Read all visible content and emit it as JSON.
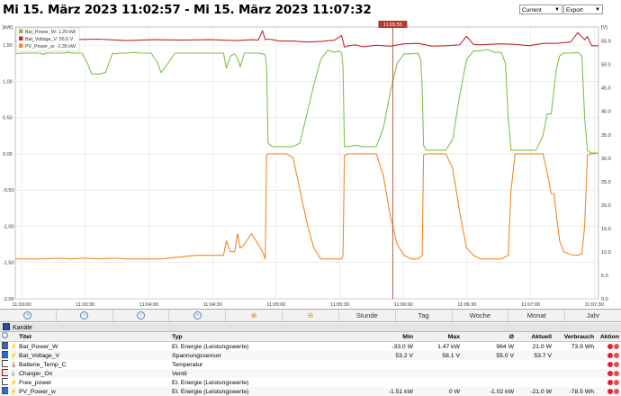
{
  "header": {
    "title": "Mi 15. März 2023 11:02:57 - Mi 15. März 2023 11:07:32",
    "range_select": "Current",
    "export_select": "Export"
  },
  "chart_data": {
    "type": "line",
    "cursor_label": "11:05:55",
    "left_axis": {
      "unit_label": "[kW]",
      "ticks": [
        "1.50",
        "1.00",
        "0.50",
        "0.00",
        "-0.50",
        "-1.00",
        "-1.50",
        "-2.00"
      ],
      "ylim": [
        -2.0,
        1.75
      ]
    },
    "right_axis": {
      "unit_label": "[V]",
      "ticks": [
        "55.0",
        "50.0",
        "45.0",
        "40.0",
        "35.0",
        "30.0",
        "25.0",
        "20.0",
        "15.0",
        "10.0",
        "5.0",
        "0.0"
      ],
      "ylim": [
        0,
        58
      ]
    },
    "x_ticks": [
      "11:03:00",
      "11:03:30",
      "11:04:00",
      "11:04:30",
      "11:05:00",
      "11:05:30",
      "11:06:00",
      "11:06:30",
      "11:07:00",
      "11:07:30"
    ],
    "legend": [
      {
        "label": "Bat_Power_W: 1.29 kW",
        "color": "#7ec24a"
      },
      {
        "label": "Bat_Voltage_V: 55.5 V",
        "color": "#c0282d"
      },
      {
        "label": "PV_Power_w: -1.35 kW",
        "color": "#f08a24"
      }
    ],
    "series": [
      {
        "name": "Bat_Power_W",
        "axis": "left",
        "color": "#7ec24a",
        "x": [
          0,
          5,
          10,
          15,
          18,
          20,
          22,
          25,
          30,
          35,
          38,
          42,
          48,
          52,
          55,
          60,
          65,
          70,
          72,
          75,
          80,
          85,
          90,
          95,
          98,
          100,
          102,
          105,
          110,
          115,
          120,
          125,
          130,
          135,
          140,
          145,
          150,
          152,
          155,
          158,
          160,
          162,
          165,
          170,
          173,
          175,
          178,
          180,
          181,
          182,
          185,
          190,
          195,
          200,
          205,
          210,
          215,
          220,
          225,
          230,
          233,
          235,
          236,
          237,
          240,
          245,
          250,
          255,
          260,
          265,
          270,
          275,
          280,
          285,
          290,
          292,
          293,
          294,
          296,
          300,
          305,
          310,
          315,
          320,
          325,
          330,
          335,
          340,
          345,
          350,
          353,
          355,
          357,
          360,
          365,
          370,
          375,
          380,
          383,
          386,
          388,
          390,
          392,
          395,
          400,
          405,
          408,
          410,
          412,
          414,
          415,
          420
        ],
        "y": [
          1.38,
          1.39,
          1.39,
          1.39,
          1.39,
          1.37,
          1.39,
          1.39,
          1.39,
          1.39,
          1.4,
          1.39,
          1.39,
          1.25,
          1.1,
          1.1,
          1.12,
          1.39,
          1.38,
          1.39,
          1.39,
          1.4,
          1.39,
          1.39,
          1.39,
          1.32,
          1.28,
          1.12,
          1.25,
          1.39,
          1.39,
          1.39,
          1.39,
          1.39,
          1.39,
          1.39,
          1.39,
          1.18,
          1.35,
          1.38,
          1.32,
          1.2,
          1.39,
          1.39,
          1.39,
          1.39,
          1.38,
          1.37,
          1.18,
          0.15,
          0.1,
          0.1,
          0.1,
          0.1,
          0.15,
          0.55,
          0.95,
          1.3,
          1.43,
          1.4,
          1.42,
          1.4,
          1.2,
          0.1,
          0.1,
          0.12,
          0.1,
          0.1,
          0.1,
          0.35,
          0.85,
          1.25,
          1.38,
          1.38,
          1.39,
          1.3,
          0.9,
          0.12,
          0.05,
          0.05,
          0.05,
          0.05,
          0.2,
          0.8,
          1.3,
          1.42,
          1.42,
          1.44,
          1.4,
          1.4,
          1.25,
          0.5,
          0.05,
          0.05,
          0.05,
          0.05,
          0.05,
          0.25,
          0.55,
          0.55,
          0.9,
          1.2,
          1.35,
          1.39,
          1.39,
          1.4,
          1.35,
          0.5,
          0.05,
          0.02,
          0.01,
          0.01
        ]
      },
      {
        "name": "Bat_Voltage_V",
        "axis": "right",
        "color": "#c0282d",
        "x": [
          0,
          20,
          40,
          60,
          80,
          100,
          120,
          140,
          160,
          170,
          175,
          178,
          180,
          182,
          185,
          190,
          200,
          210,
          220,
          230,
          235,
          237,
          240,
          245,
          250,
          260,
          270,
          280,
          290,
          300,
          310,
          320,
          325,
          330,
          335,
          340,
          350,
          360,
          370,
          380,
          390,
          400,
          405,
          410,
          412,
          415,
          420
        ],
        "y": [
          55.2,
          55.1,
          55.3,
          55.4,
          55.1,
          55.3,
          55.2,
          55.3,
          55.1,
          55.3,
          55.2,
          57.2,
          55.3,
          55.4,
          55.3,
          55.0,
          55.0,
          54.8,
          54.9,
          55.2,
          56.2,
          53.7,
          54.0,
          54.2,
          53.8,
          54.1,
          53.9,
          54.4,
          54.5,
          53.9,
          54.0,
          54.2,
          56.0,
          54.3,
          54.2,
          54.3,
          54.4,
          54.3,
          54.0,
          54.5,
          54.5,
          54.8,
          56.8,
          55.3,
          56.0,
          54.0,
          54.0
        ]
      },
      {
        "name": "PV_Power_w",
        "axis": "left",
        "color": "#f08a24",
        "x": [
          0,
          10,
          20,
          30,
          40,
          50,
          60,
          70,
          80,
          90,
          100,
          105,
          110,
          115,
          120,
          130,
          140,
          145,
          150,
          152,
          155,
          158,
          160,
          162,
          165,
          170,
          175,
          178,
          180,
          181,
          182,
          185,
          190,
          195,
          200,
          205,
          210,
          215,
          220,
          225,
          230,
          233,
          235,
          236,
          237,
          240,
          245,
          250,
          255,
          260,
          265,
          270,
          275,
          280,
          285,
          290,
          293,
          294,
          296,
          300,
          305,
          310,
          315,
          320,
          325,
          330,
          335,
          340,
          345,
          350,
          355,
          357,
          360,
          365,
          370,
          375,
          380,
          383,
          386,
          388,
          390,
          392,
          395,
          400,
          405,
          408,
          410,
          412,
          415,
          420
        ],
        "y": [
          -1.45,
          -1.45,
          -1.45,
          -1.44,
          -1.45,
          -1.44,
          -1.45,
          -1.44,
          -1.45,
          -1.45,
          -1.45,
          -1.45,
          -1.44,
          -1.43,
          -1.42,
          -1.4,
          -1.4,
          -1.4,
          -1.4,
          -1.2,
          -1.35,
          -1.35,
          -1.1,
          -1.3,
          -1.25,
          -1.1,
          -1.25,
          -1.35,
          -1.45,
          -0.02,
          0.0,
          0.0,
          0.0,
          0.0,
          -0.05,
          -0.5,
          -0.95,
          -1.3,
          -1.45,
          -1.45,
          -1.45,
          -1.45,
          -1.45,
          -1.4,
          -0.02,
          0.0,
          0.0,
          0.0,
          0.0,
          0.0,
          -0.3,
          -0.85,
          -1.25,
          -1.4,
          -1.45,
          -1.45,
          -1.4,
          -0.02,
          0.0,
          0.0,
          0.0,
          0.0,
          -0.2,
          -0.8,
          -1.3,
          -1.4,
          -1.45,
          -1.45,
          -1.45,
          -1.45,
          -1.4,
          -0.5,
          0.0,
          0.0,
          0.0,
          0.0,
          0.0,
          -0.25,
          -0.55,
          -0.55,
          -0.9,
          -1.2,
          -1.35,
          -1.39,
          -1.4,
          -1.38,
          -1.0,
          -0.02,
          0.0,
          0.01
        ]
      }
    ]
  },
  "navbar": {
    "buttons": [
      "Stunde",
      "Tag",
      "Woche",
      "Monat",
      "Jahr"
    ]
  },
  "channels": {
    "section_label": "Kanäle",
    "columns": [
      "Titel",
      "Typ",
      "Min",
      "Max",
      "Ø",
      "Aktuell",
      "Verbrauch",
      "Aktion"
    ],
    "rows": [
      {
        "title": "Bat_Power_W",
        "type": "El. Energie (Leistungswerte)",
        "min": "-33.0 W",
        "max": "1.47 kW",
        "avg": "964 W",
        "current": "21.0 W",
        "consumption": "73.9 Wh",
        "checked": true
      },
      {
        "title": "Bat_Voltage_V",
        "type": "Spannungssensor",
        "min": "53.2 V",
        "max": "58.1 V",
        "avg": "55.0 V",
        "current": "53.7 V",
        "consumption": "",
        "checked": true
      },
      {
        "title": "Batterie_Temp_C",
        "type": "Temperatur",
        "min": "",
        "max": "",
        "avg": "",
        "current": "",
        "consumption": "",
        "checked": false
      },
      {
        "title": "Charger_On",
        "type": "Ventil",
        "min": "",
        "max": "",
        "avg": "",
        "current": "",
        "consumption": "",
        "checked": false
      },
      {
        "title": "Free_power",
        "type": "El. Energie (Leistungswerte)",
        "min": "",
        "max": "",
        "avg": "",
        "current": "",
        "consumption": "",
        "checked": false
      },
      {
        "title": "PV_Power_w",
        "type": "El. Energie (Leistungswerte)",
        "min": "-1.51 kW",
        "max": "0 W",
        "avg": "-1.02 kW",
        "current": "-21.0 W",
        "consumption": "-78.5 Wh",
        "checked": true
      }
    ]
  }
}
